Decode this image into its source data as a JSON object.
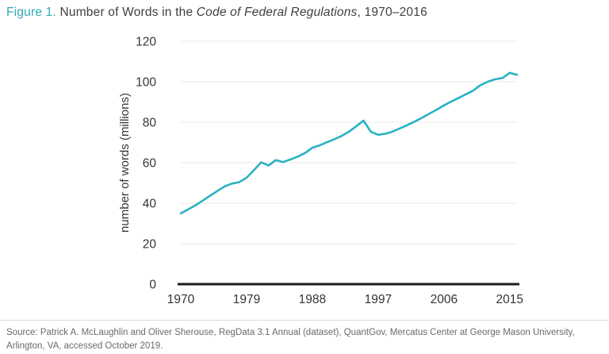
{
  "title": {
    "figure_label": "Figure 1.",
    "text_before_italic": " Number of Words in the ",
    "italic": "Code of Federal Regulations",
    "text_after_italic": ", 1970–2016"
  },
  "source": {
    "text": "Source: Patrick A. McLaughlin and Oliver Sherouse, RegData 3.1 Annual (dataset), QuantGov, Mercatus Center at George Mason University, Arlington, VA, accessed October 2019."
  },
  "colors": {
    "accent_teal": "#2fa9b9",
    "line": "#29b2c2",
    "axis": "#1c1c1c",
    "gridline": "#e9e9e9",
    "tick_text": "#353535",
    "title_text": "#3f3f3f",
    "source_text": "#6a6a6a"
  },
  "chart_data": {
    "type": "line",
    "title": "Number of Words in the Code of Federal Regulations, 1970–2016",
    "xlabel": "",
    "ylabel": "number of words (millions)",
    "ylim": [
      0,
      120
    ],
    "yticks": [
      0,
      20,
      40,
      60,
      80,
      100,
      120
    ],
    "xticks": [
      1970,
      1979,
      1988,
      1997,
      2006,
      2015
    ],
    "grid": "horizontal",
    "legend": "none",
    "x": [
      1970,
      1971,
      1972,
      1973,
      1974,
      1975,
      1976,
      1977,
      1978,
      1979,
      1980,
      1981,
      1982,
      1983,
      1984,
      1985,
      1986,
      1987,
      1988,
      1989,
      1990,
      1991,
      1992,
      1993,
      1994,
      1995,
      1996,
      1997,
      1998,
      1999,
      2000,
      2001,
      2002,
      2003,
      2004,
      2005,
      2006,
      2007,
      2008,
      2009,
      2010,
      2011,
      2012,
      2013,
      2014,
      2015,
      2016
    ],
    "series": [
      {
        "name": "Number of words in the CFR (millions)",
        "values": [
          35.0,
          36.9,
          38.9,
          41.3,
          43.7,
          46.0,
          48.3,
          49.7,
          50.4,
          52.6,
          56.3,
          60.2,
          58.6,
          61.3,
          60.3,
          61.6,
          63.0,
          64.8,
          67.4,
          68.6,
          70.1,
          71.6,
          73.2,
          75.3,
          78.0,
          80.8,
          75.3,
          73.8,
          74.3,
          75.4,
          77.0,
          78.6,
          80.3,
          82.2,
          84.2,
          86.2,
          88.3,
          90.2,
          92.0,
          93.8,
          95.6,
          98.3,
          100.0,
          101.2,
          101.8,
          104.4,
          103.4
        ]
      }
    ]
  }
}
